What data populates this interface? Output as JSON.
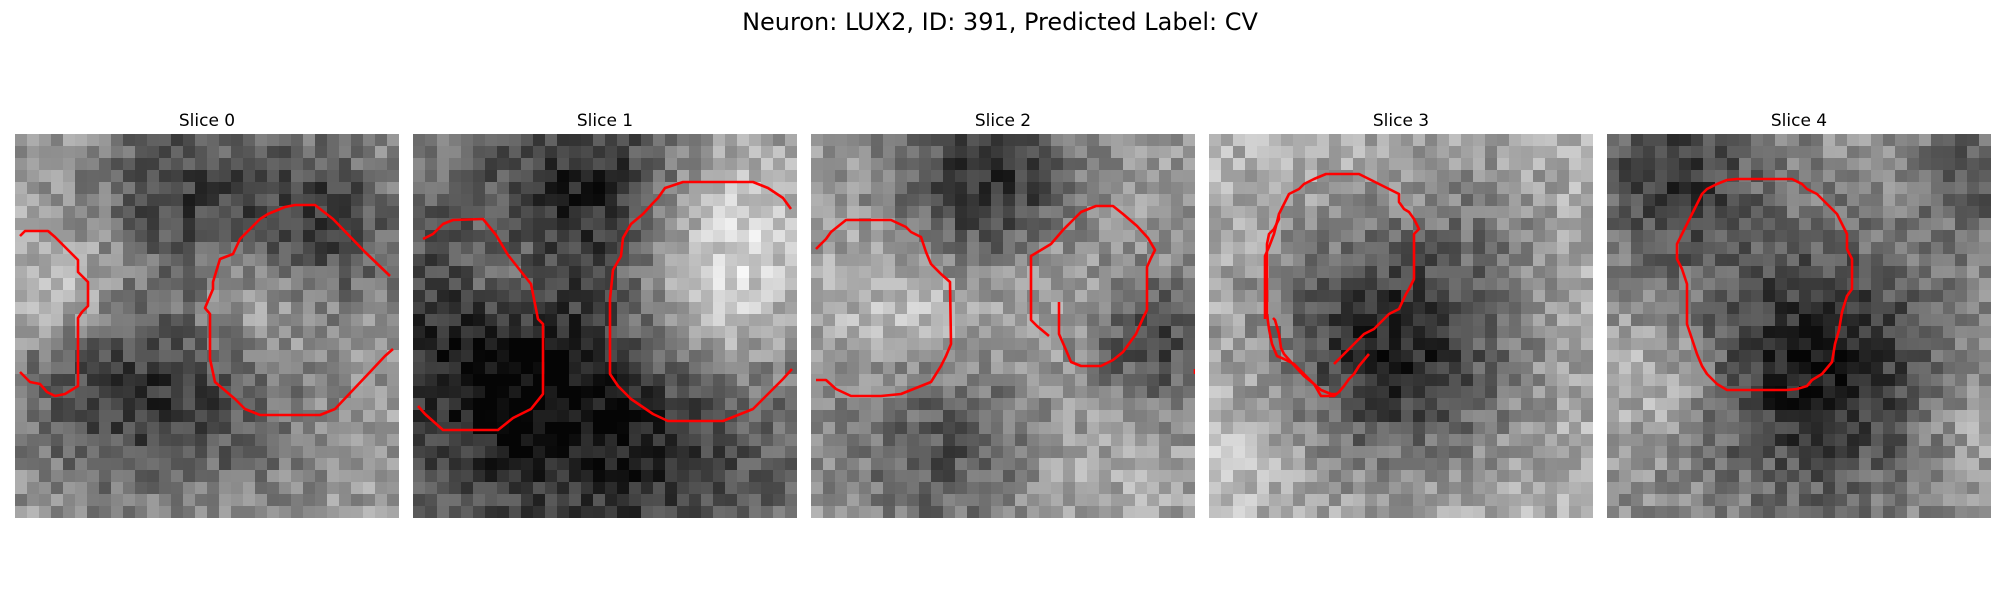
{
  "figure": {
    "title": "Neuron: LUX2, ID: 391, Predicted Label: CV"
  },
  "slices": [
    {
      "title": "Slice 0"
    },
    {
      "title": "Slice 1"
    },
    {
      "title": "Slice 2"
    },
    {
      "title": "Slice 3"
    },
    {
      "title": "Slice 4"
    }
  ],
  "colors": {
    "contour": "#ff0000"
  }
}
